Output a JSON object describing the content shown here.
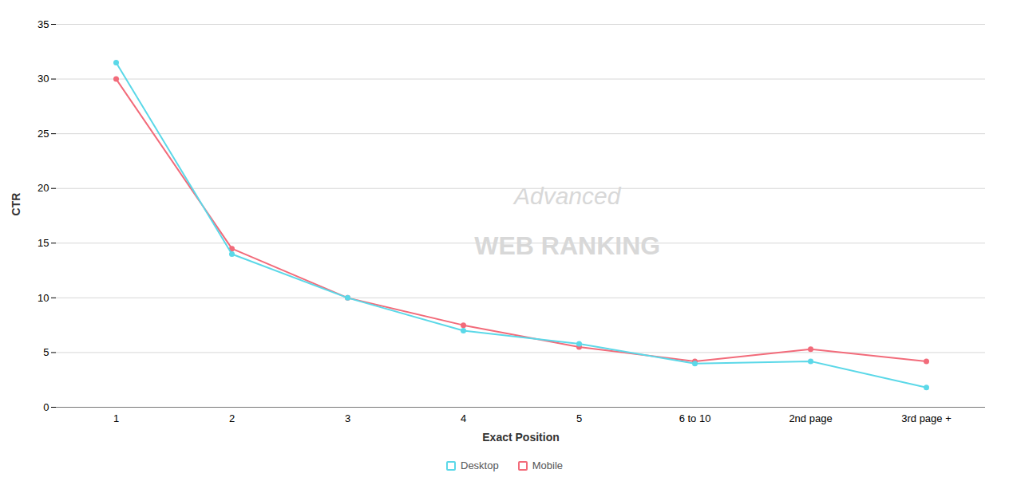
{
  "chart_data": {
    "type": "line",
    "xlabel": "Exact Position",
    "ylabel": "CTR",
    "categories": [
      "1",
      "2",
      "3",
      "4",
      "5",
      "6 to 10",
      "2nd page",
      "3rd page +"
    ],
    "series": [
      {
        "name": "Desktop",
        "color": "#5BD8E8",
        "values": [
          31.5,
          14.0,
          10.0,
          7.0,
          5.8,
          4.0,
          4.2,
          1.8
        ]
      },
      {
        "name": "Mobile",
        "color": "#F26B7A",
        "values": [
          30.0,
          14.5,
          10.0,
          7.5,
          5.5,
          4.2,
          5.3,
          4.2
        ]
      }
    ],
    "ylim": [
      0,
      35
    ],
    "yticks": [
      0,
      5,
      10,
      15,
      20,
      25,
      30,
      35
    ],
    "grid": true,
    "legend": "bottom",
    "marker": "circle",
    "annotations": [
      "Advanced",
      "WEB RANKING"
    ]
  }
}
